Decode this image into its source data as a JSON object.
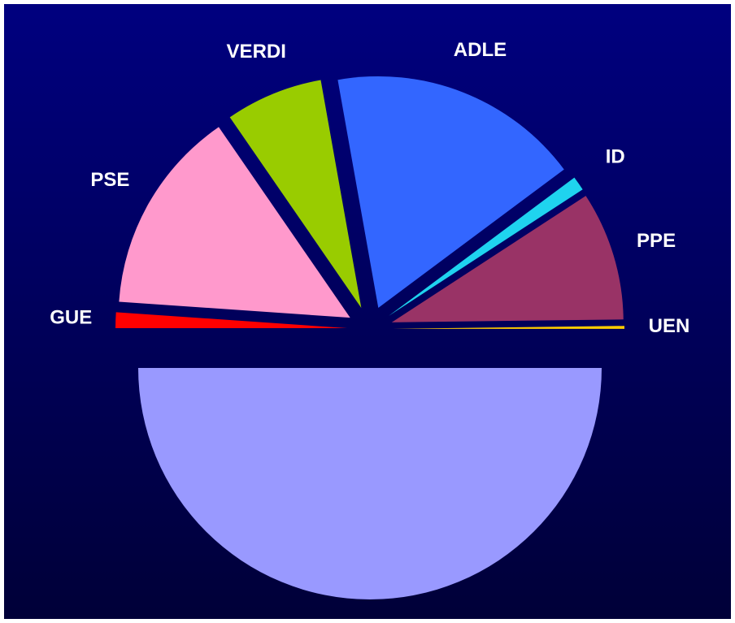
{
  "chart_data": {
    "type": "pie",
    "categories": [
      "UEN",
      "PPE",
      "ID",
      "ADLE",
      "VERDI",
      "PSE",
      "GUE",
      null
    ],
    "values": [
      0.2,
      9,
      1,
      17.6,
      6.8,
      14.3,
      1.1,
      50
    ],
    "colors": [
      "#ffcc00",
      "#993366",
      "#1fd3ef",
      "#3366ff",
      "#99cc00",
      "#ff99cc",
      "#ff0000",
      "#9999ff"
    ]
  }
}
